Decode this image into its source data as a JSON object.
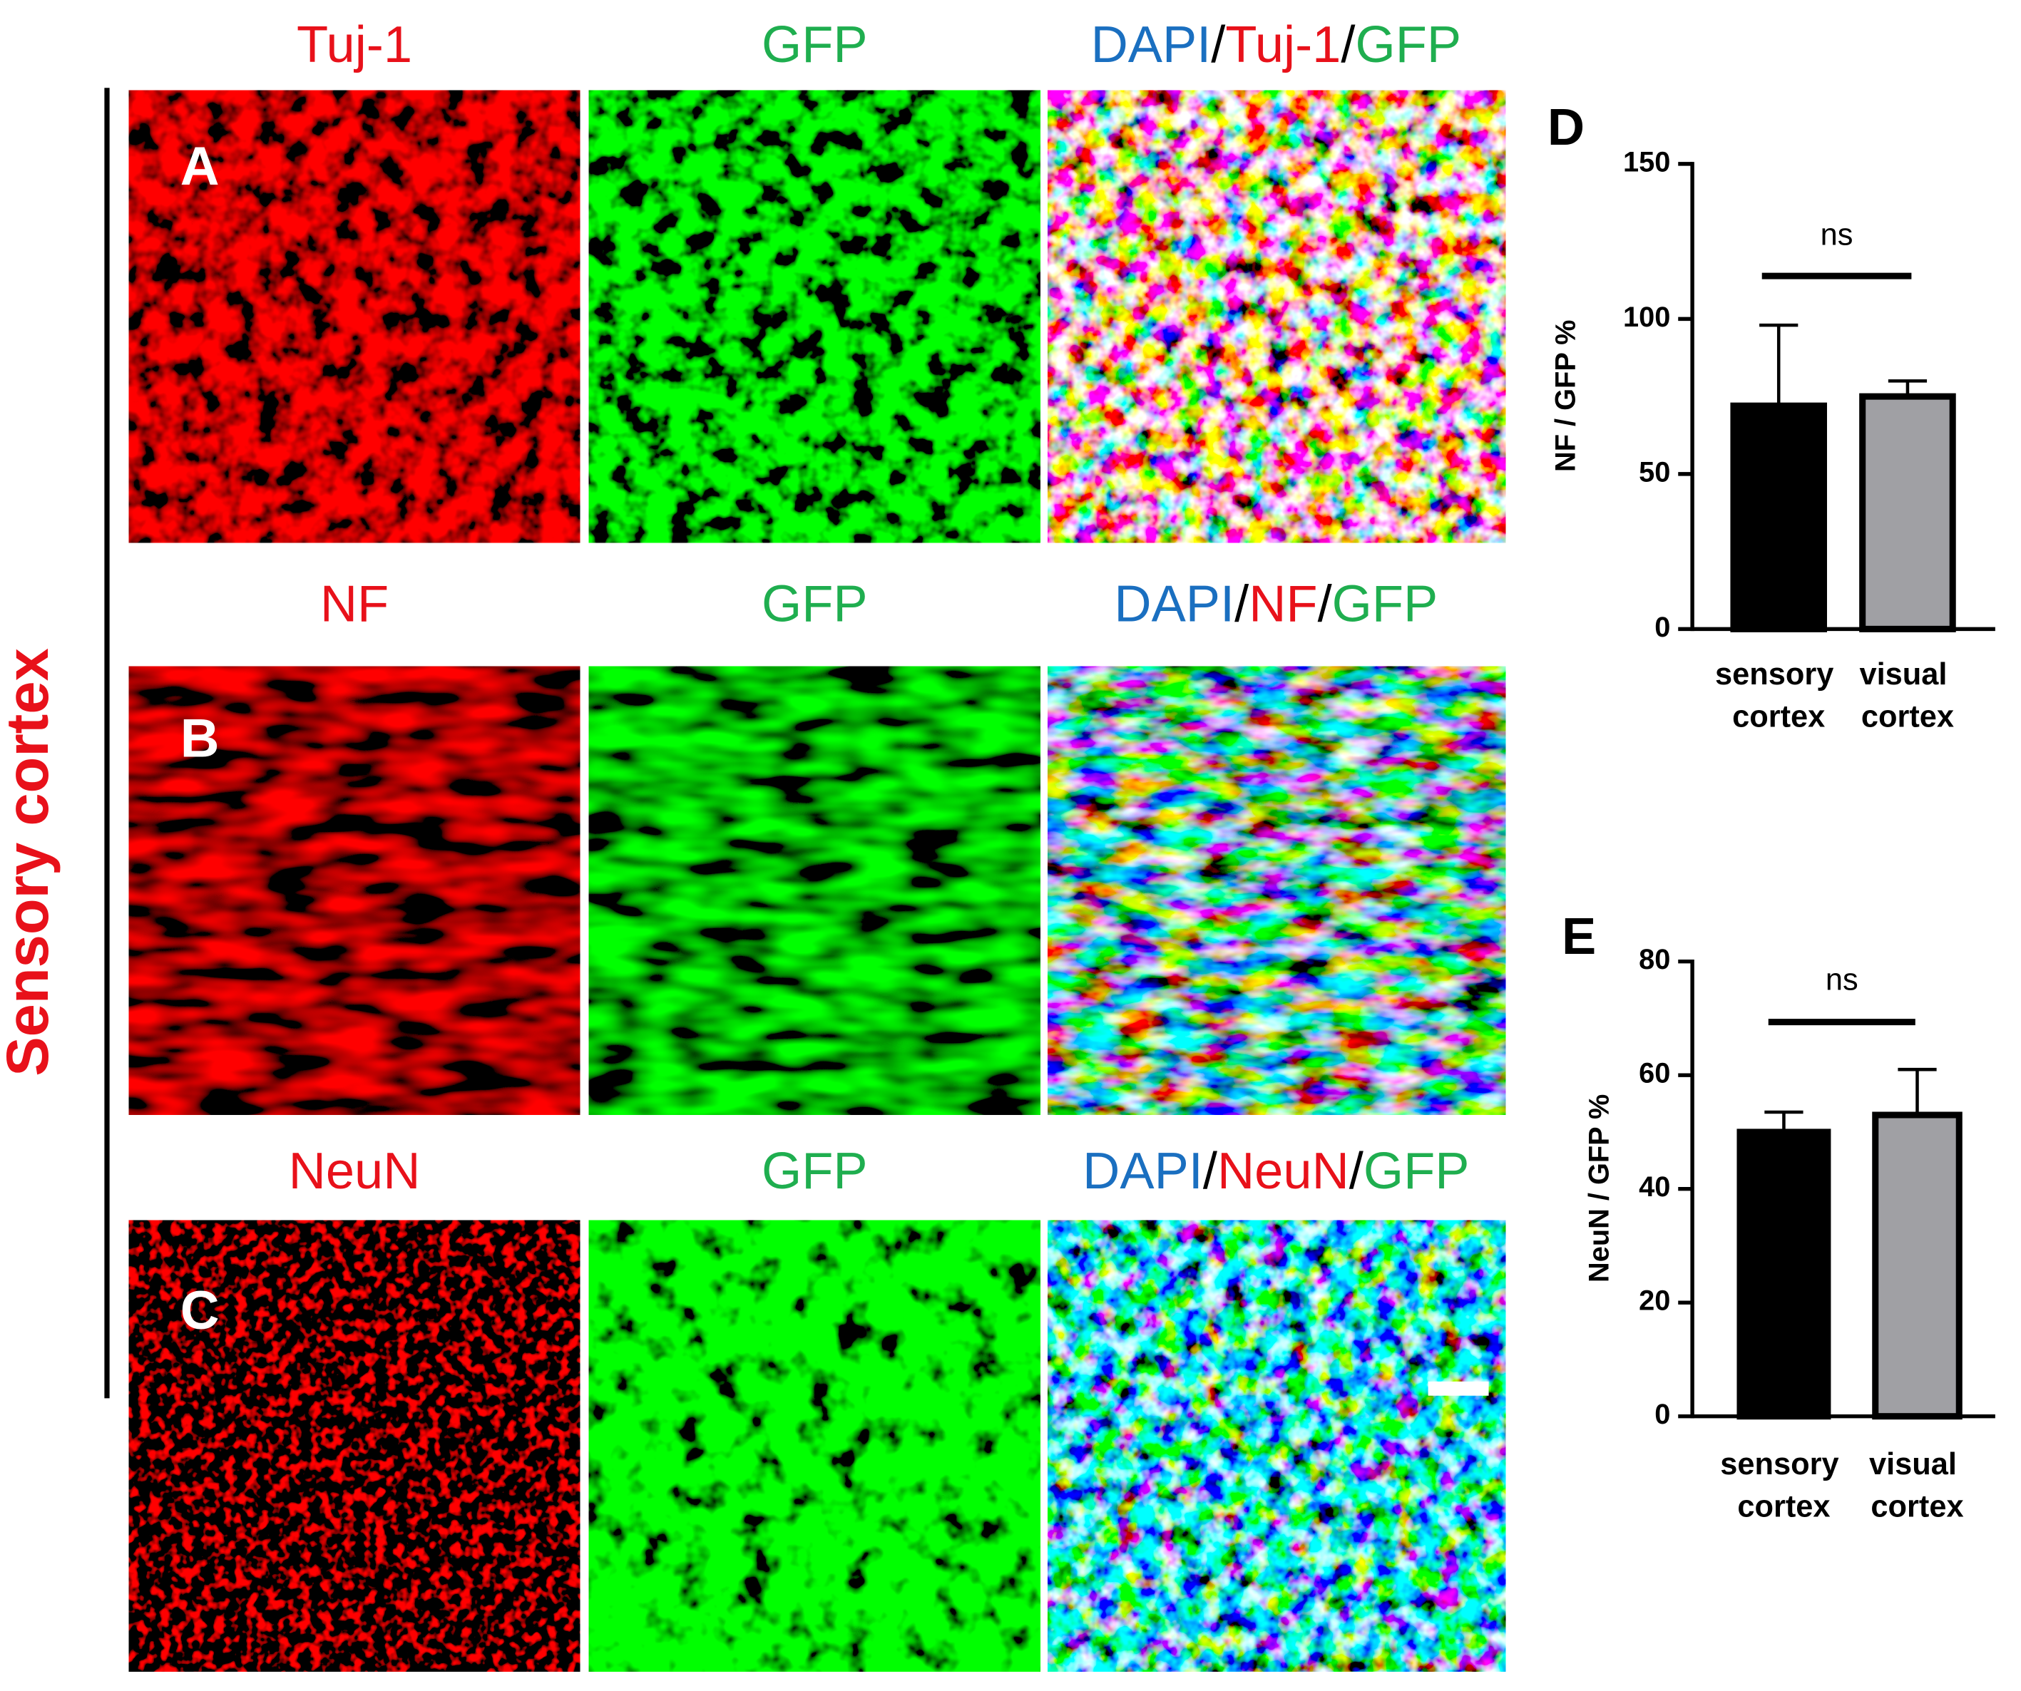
{
  "side_label": "Sensory cortex",
  "rows": [
    {
      "letter": "A",
      "stain": "Tuj-1",
      "gfp": "GFP",
      "merge": [
        "DAPI",
        "/",
        "Tuj-1",
        "/",
        "GFP"
      ]
    },
    {
      "letter": "B",
      "stain": "NF",
      "gfp": "GFP",
      "merge": [
        "DAPI",
        "/",
        "NF",
        "/",
        "GFP"
      ]
    },
    {
      "letter": "C",
      "stain": "NeuN",
      "gfp": "GFP",
      "merge": [
        "DAPI",
        "/",
        "NeuN",
        "/",
        "GFP"
      ]
    }
  ],
  "chart_data": [
    {
      "type": "bar",
      "panel_label": "D",
      "y_label": "NF / GFP %",
      "categories": [
        "sensory cortex",
        "visual cortex"
      ],
      "values": [
        72,
        75
      ],
      "errors": [
        26,
        5
      ],
      "colors": [
        "#000000",
        "#a0a0a4"
      ],
      "annotation": "ns",
      "ylim": [
        0,
        150
      ],
      "yticks": [
        0,
        50,
        100,
        150
      ]
    },
    {
      "type": "bar",
      "panel_label": "E",
      "y_label": "NeuN / GFP %",
      "categories": [
        "sensory cortex",
        "visual cortex"
      ],
      "values": [
        50,
        53
      ],
      "errors": [
        3.5,
        8
      ],
      "colors": [
        "#000000",
        "#a0a0a4"
      ],
      "annotation": "ns",
      "ylim": [
        0,
        80
      ],
      "yticks": [
        0,
        20,
        40,
        60,
        80
      ]
    }
  ]
}
